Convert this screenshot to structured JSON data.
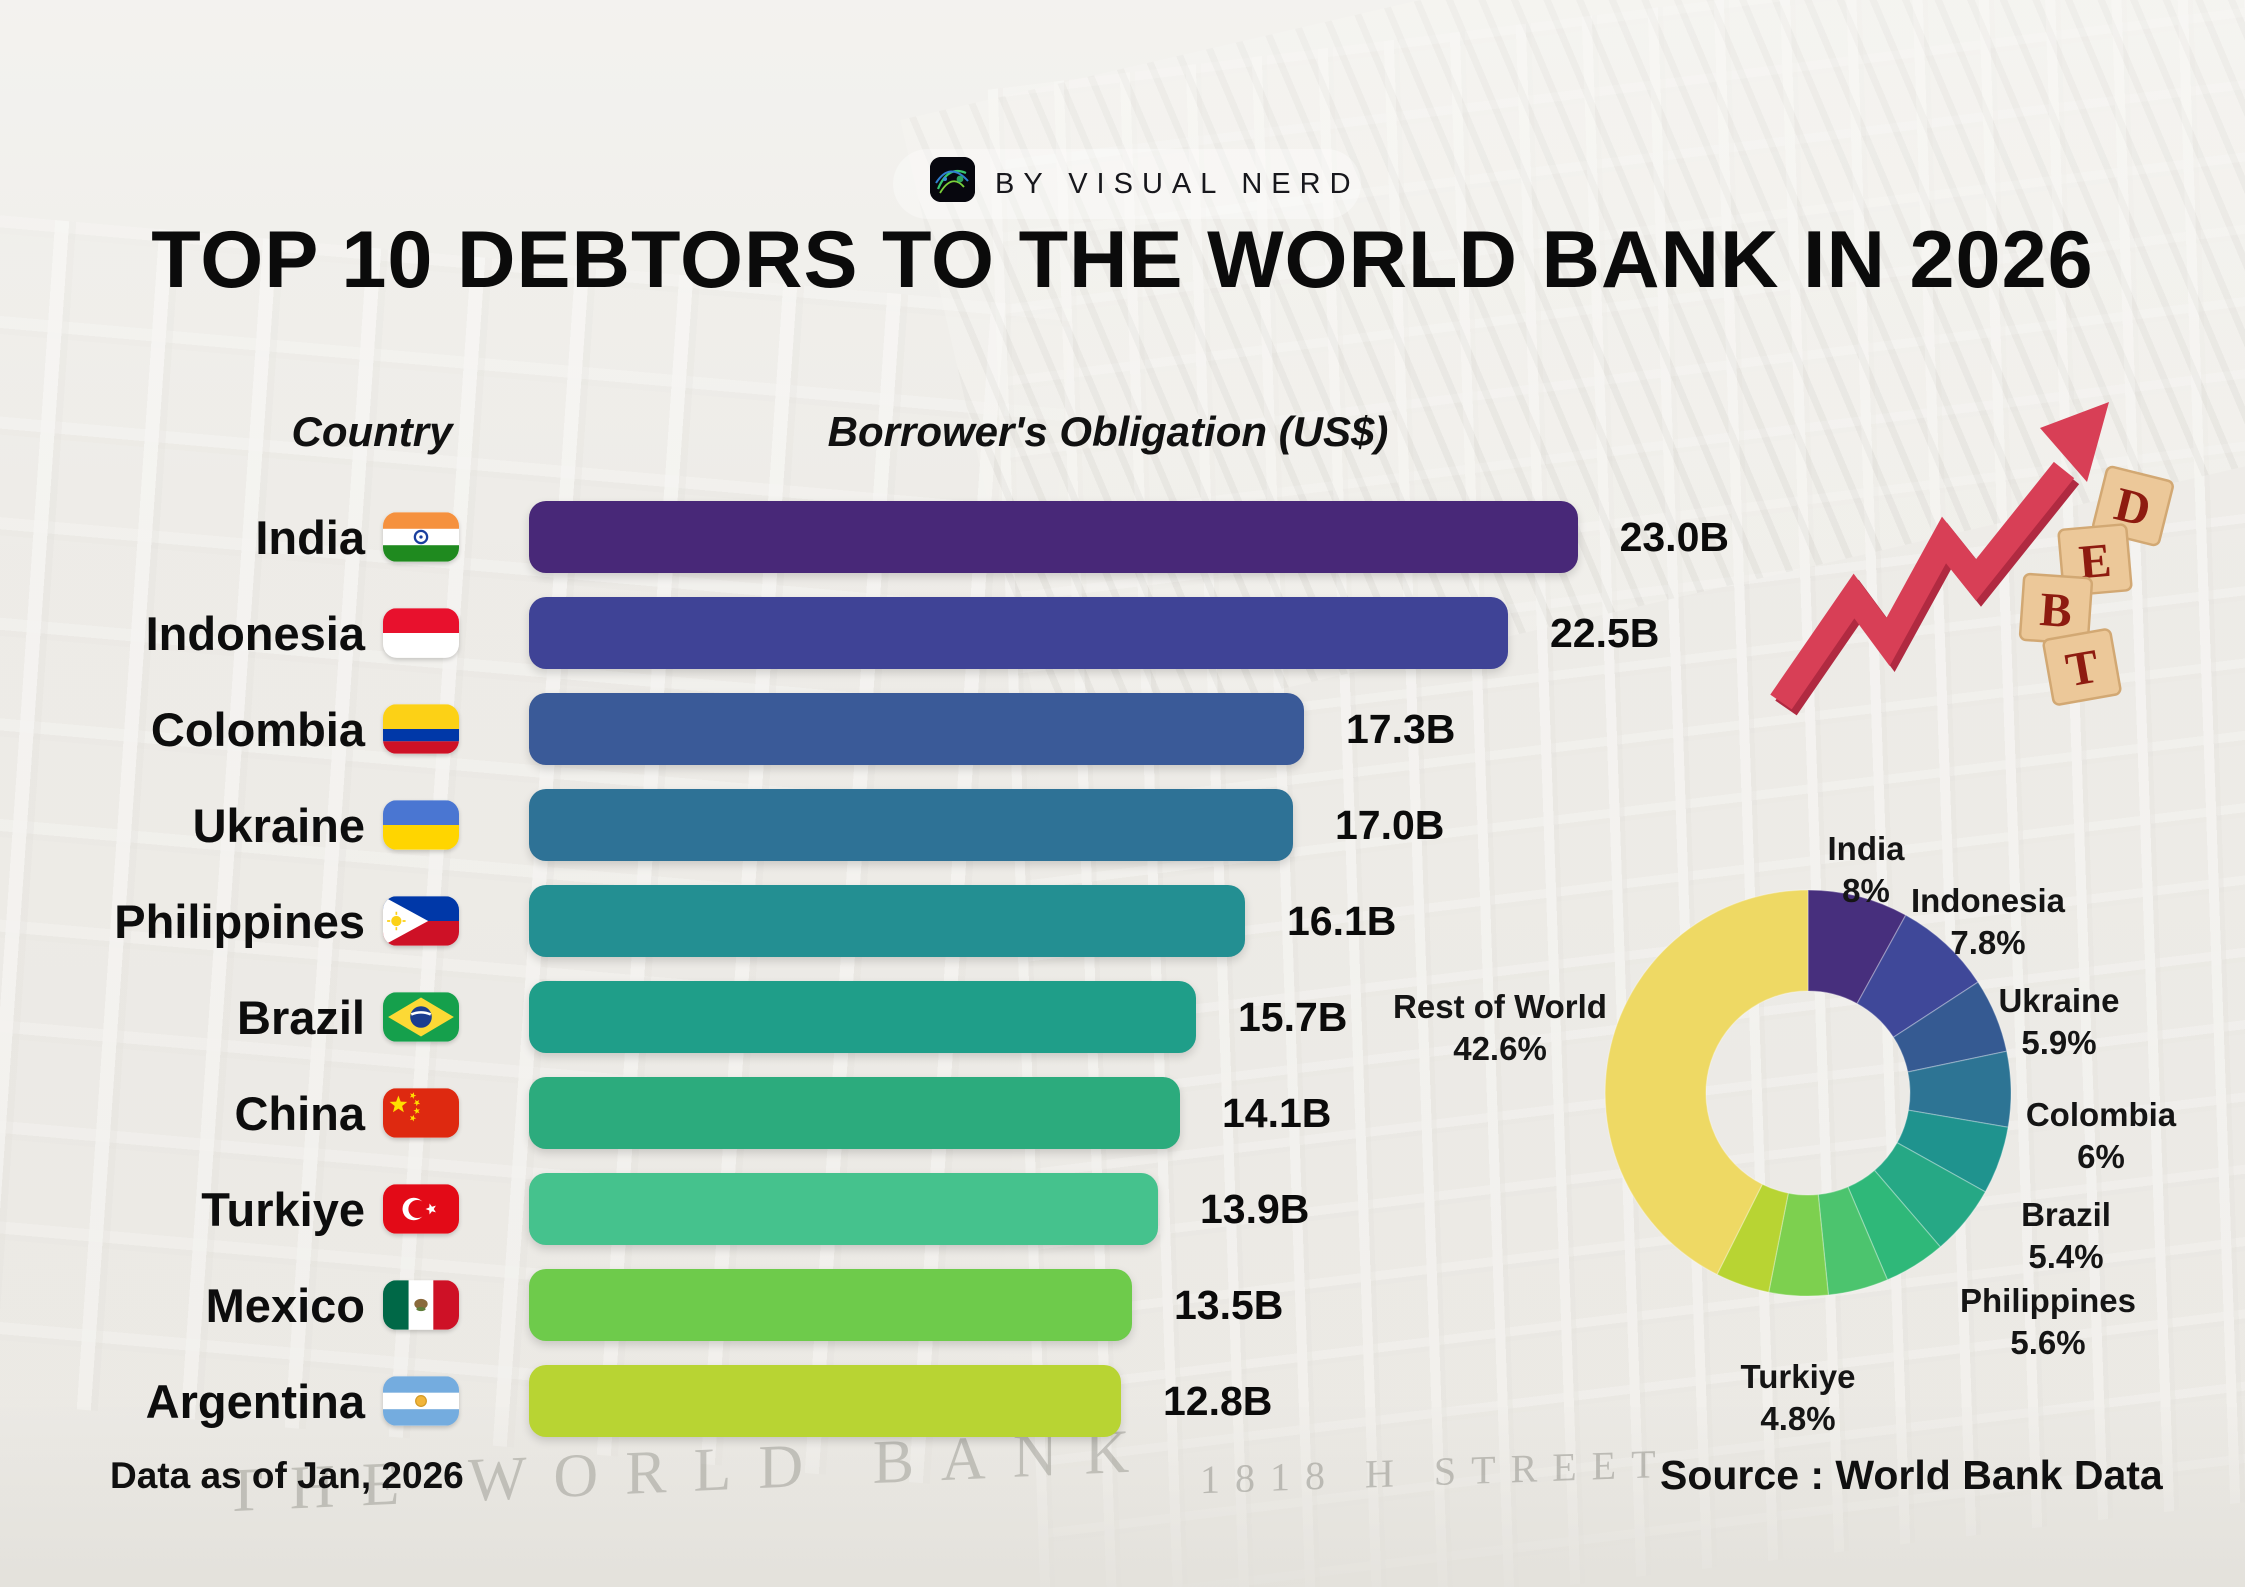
{
  "logo": {
    "byline": "BY VISUAL NERD"
  },
  "title": "TOP 10 DEBTORS TO THE WORLD BANK IN 2026",
  "columns": {
    "country": "Country",
    "obligation": "Borrower's Obligation (US$)"
  },
  "colors": {
    "background": "#ecebe7",
    "arrow_red": "#d83f56",
    "wood_block": "#ecc899",
    "block_letter": "#8e1b10",
    "rest_of_world_yellow": "#eed964"
  },
  "chart_data": [
    {
      "type": "bar",
      "title": "TOP 10 DEBTORS TO THE WORLD BANK IN 2026",
      "xlabel": "Borrower's Obligation (US$)",
      "categories": [
        "India",
        "Indonesia",
        "Colombia",
        "Ukraine",
        "Philippines",
        "Brazil",
        "China",
        "Turkiye",
        "Mexico",
        "Argentina"
      ],
      "values": [
        23.0,
        22.5,
        17.3,
        17.0,
        16.1,
        15.7,
        14.1,
        13.9,
        13.5,
        12.8
      ],
      "value_labels": [
        "23.0B",
        "22.5B",
        "17.3B",
        "17.0B",
        "16.1B",
        "15.7B",
        "14.1B",
        "13.9B",
        "13.5B",
        "12.8B"
      ],
      "bar_colors": [
        "#482878",
        "#3f4396",
        "#3a5a98",
        "#2e7296",
        "#238f92",
        "#1f9e89",
        "#2cab7d",
        "#45c28d",
        "#6ecb4b",
        "#b8d433"
      ],
      "bar_width_pct": [
        100,
        91,
        72,
        71,
        66.5,
        62,
        60.5,
        58.5,
        56,
        55
      ],
      "flags": [
        "in",
        "id",
        "co",
        "ua",
        "ph",
        "br",
        "cn",
        "tr",
        "mx",
        "ar"
      ],
      "unit": "billion US$"
    },
    {
      "type": "pie",
      "subtype": "donut",
      "start_angle_deg": 0,
      "segments": [
        {
          "label": "India",
          "pct": 8,
          "color": "#472f7d",
          "labeled": true
        },
        {
          "label": "Indonesia",
          "pct": 7.8,
          "color": "#3f4899",
          "labeled": true
        },
        {
          "label": "Ukraine",
          "pct": 5.9,
          "color": "#355a92",
          "labeled": true
        },
        {
          "label": "Colombia",
          "pct": 6,
          "color": "#2d7494",
          "labeled": true
        },
        {
          "label": "Brazil",
          "pct": 5.4,
          "color": "#1f938e",
          "labeled": true
        },
        {
          "label": "Philippines",
          "pct": 5.6,
          "color": "#26a885",
          "labeled": true
        },
        {
          "label": "China",
          "pct": 4.9,
          "color": "#2fb879",
          "labeled": false
        },
        {
          "label": "Turkiye",
          "pct": 4.8,
          "color": "#4cc46e",
          "labeled": true
        },
        {
          "label": "Mexico",
          "pct": 4.7,
          "color": "#7dd04f",
          "labeled": false
        },
        {
          "label": "Argentina",
          "pct": 4.3,
          "color": "#b8d433",
          "labeled": false
        },
        {
          "label": "Rest of World",
          "pct": 42.6,
          "color": "#eed964",
          "labeled": true
        }
      ],
      "callouts": [
        {
          "text": "India",
          "pct": "8%"
        },
        {
          "text": "Indonesia",
          "pct": "7.8%"
        },
        {
          "text": "Ukraine",
          "pct": "5.9%"
        },
        {
          "text": "Colombia",
          "pct": "6%"
        },
        {
          "text": "Brazil",
          "pct": "5.4%"
        },
        {
          "text": "Philippines",
          "pct": "5.6%"
        },
        {
          "text": "Turkiye",
          "pct": "4.8%"
        },
        {
          "text": "Rest of World",
          "pct": "42.6%"
        }
      ]
    }
  ],
  "debt_graphic": {
    "letters": [
      "D",
      "E",
      "B",
      "T"
    ]
  },
  "footer": {
    "left": "Data as of Jan, 2026",
    "right": "Source : World Bank Data"
  },
  "background_signs": {
    "left": "THE WORLD BANK",
    "right": "1818 H STREET"
  }
}
